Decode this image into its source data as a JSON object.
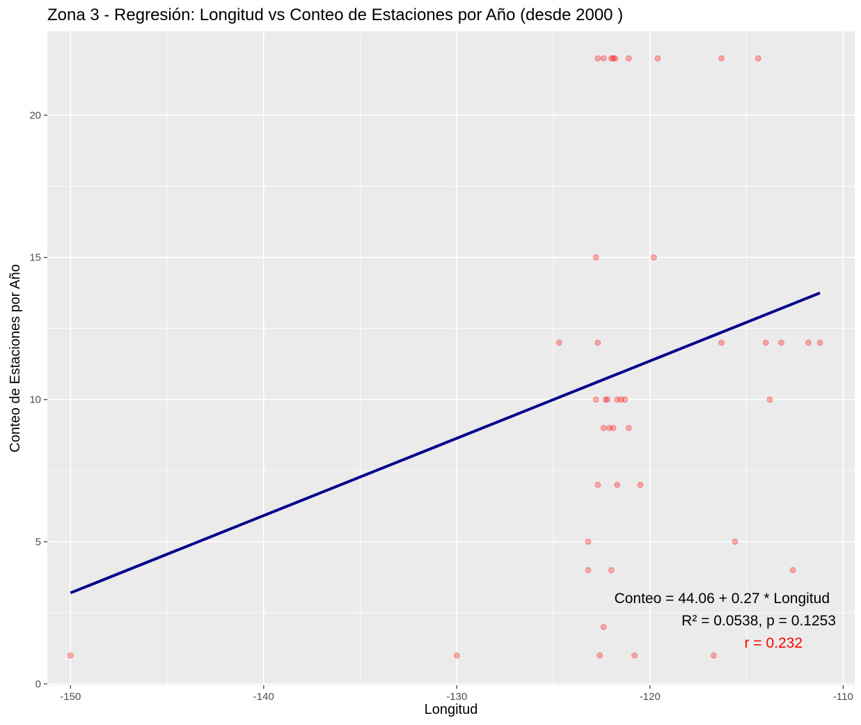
{
  "chart_data": {
    "type": "scatter",
    "title": "Zona 3 - Regresión: Longitud vs Conteo de Estaciones por Año (desde 2000 )",
    "xlabel": "Longitud",
    "ylabel": "Conteo de Estaciones por Año",
    "xlim": [
      -151.2,
      -109.4
    ],
    "ylim": [
      -0.05,
      22.95
    ],
    "x_ticks": [
      -150,
      -140,
      -130,
      -120,
      -110
    ],
    "x_tick_labels": [
      "-150",
      "-140",
      "-130",
      "-120",
      "-110"
    ],
    "y_ticks": [
      0,
      5,
      10,
      15,
      20
    ],
    "y_tick_labels": [
      "0",
      "5",
      "10",
      "15",
      "20"
    ],
    "grid": true,
    "points": [
      {
        "x": -122.7,
        "y": 22
      },
      {
        "x": -122.4,
        "y": 22
      },
      {
        "x": -122.0,
        "y": 22
      },
      {
        "x": -121.9,
        "y": 22
      },
      {
        "x": -121.8,
        "y": 22
      },
      {
        "x": -121.1,
        "y": 22
      },
      {
        "x": -119.6,
        "y": 22
      },
      {
        "x": -116.3,
        "y": 22
      },
      {
        "x": -114.4,
        "y": 22
      },
      {
        "x": -122.8,
        "y": 15
      },
      {
        "x": -119.8,
        "y": 15
      },
      {
        "x": -124.7,
        "y": 12
      },
      {
        "x": -122.7,
        "y": 12
      },
      {
        "x": -116.3,
        "y": 12
      },
      {
        "x": -114.0,
        "y": 12
      },
      {
        "x": -113.2,
        "y": 12
      },
      {
        "x": -111.8,
        "y": 12
      },
      {
        "x": -111.2,
        "y": 12
      },
      {
        "x": -122.8,
        "y": 10
      },
      {
        "x": -122.3,
        "y": 10
      },
      {
        "x": -122.2,
        "y": 10
      },
      {
        "x": -121.7,
        "y": 10
      },
      {
        "x": -121.5,
        "y": 10
      },
      {
        "x": -121.3,
        "y": 10
      },
      {
        "x": -113.8,
        "y": 10
      },
      {
        "x": -122.4,
        "y": 9
      },
      {
        "x": -122.1,
        "y": 9
      },
      {
        "x": -121.9,
        "y": 9
      },
      {
        "x": -121.1,
        "y": 9
      },
      {
        "x": -122.7,
        "y": 7
      },
      {
        "x": -121.7,
        "y": 7
      },
      {
        "x": -120.5,
        "y": 7
      },
      {
        "x": -123.2,
        "y": 5
      },
      {
        "x": -115.6,
        "y": 5
      },
      {
        "x": -123.2,
        "y": 4
      },
      {
        "x": -122.0,
        "y": 4
      },
      {
        "x": -112.6,
        "y": 4
      },
      {
        "x": -122.4,
        "y": 2
      },
      {
        "x": -150.0,
        "y": 1
      },
      {
        "x": -130.0,
        "y": 1
      },
      {
        "x": -122.6,
        "y": 1
      },
      {
        "x": -120.8,
        "y": 1
      },
      {
        "x": -116.7,
        "y": 1
      }
    ],
    "regression_line": {
      "x": [
        -150.0,
        -111.2
      ],
      "y": [
        3.2,
        13.75
      ],
      "color": "#00008b"
    },
    "point_color": "#ff0000",
    "point_alpha": 0.3,
    "annotations": {
      "equation": "Conteo = 44.06 + 0.27 * Longitud",
      "stats": "R² = 0.0538, p = 0.1253",
      "r": "r = 0.232",
      "r_color": "#ff0000",
      "placement": "bottom-right"
    },
    "panel_background": "#ebebeb",
    "grid_color": "#ffffff"
  }
}
